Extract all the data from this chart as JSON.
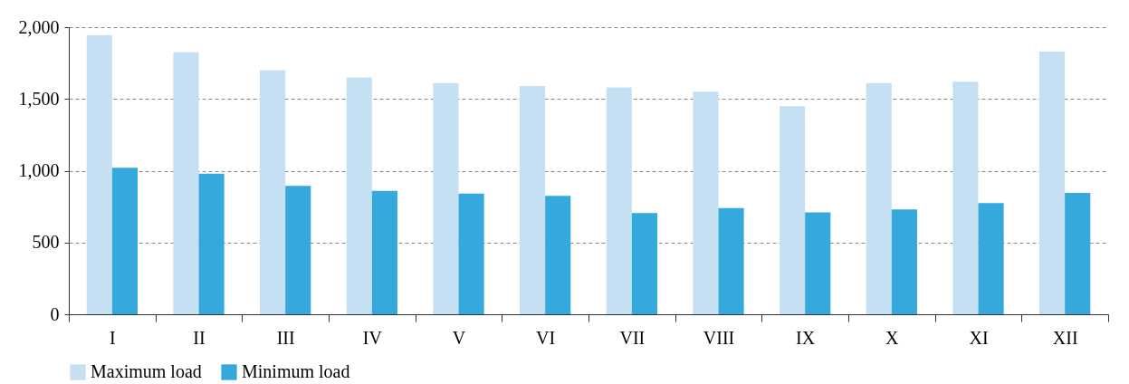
{
  "chart_data": {
    "type": "bar",
    "categories": [
      "I",
      "II",
      "III",
      "IV",
      "V",
      "VI",
      "VII",
      "VIII",
      "IX",
      "X",
      "XI",
      "XII"
    ],
    "series": [
      {
        "name": "Maximum load",
        "color": "#c5e0f2",
        "values": [
          1945,
          1825,
          1700,
          1650,
          1610,
          1590,
          1580,
          1550,
          1450,
          1610,
          1620,
          1830
        ]
      },
      {
        "name": "Minimum load",
        "color": "#35a9db",
        "values": [
          1020,
          980,
          895,
          860,
          840,
          825,
          705,
          740,
          710,
          730,
          775,
          845
        ]
      }
    ],
    "ylim": [
      0,
      2000
    ],
    "yticks": [
      {
        "value": 0,
        "label": "0"
      },
      {
        "value": 500,
        "label": "500"
      },
      {
        "value": 1000,
        "label": "1,000"
      },
      {
        "value": 1500,
        "label": "1,500"
      },
      {
        "value": 2000,
        "label": "2,000"
      }
    ],
    "grid": "y",
    "legend": "bottom"
  }
}
